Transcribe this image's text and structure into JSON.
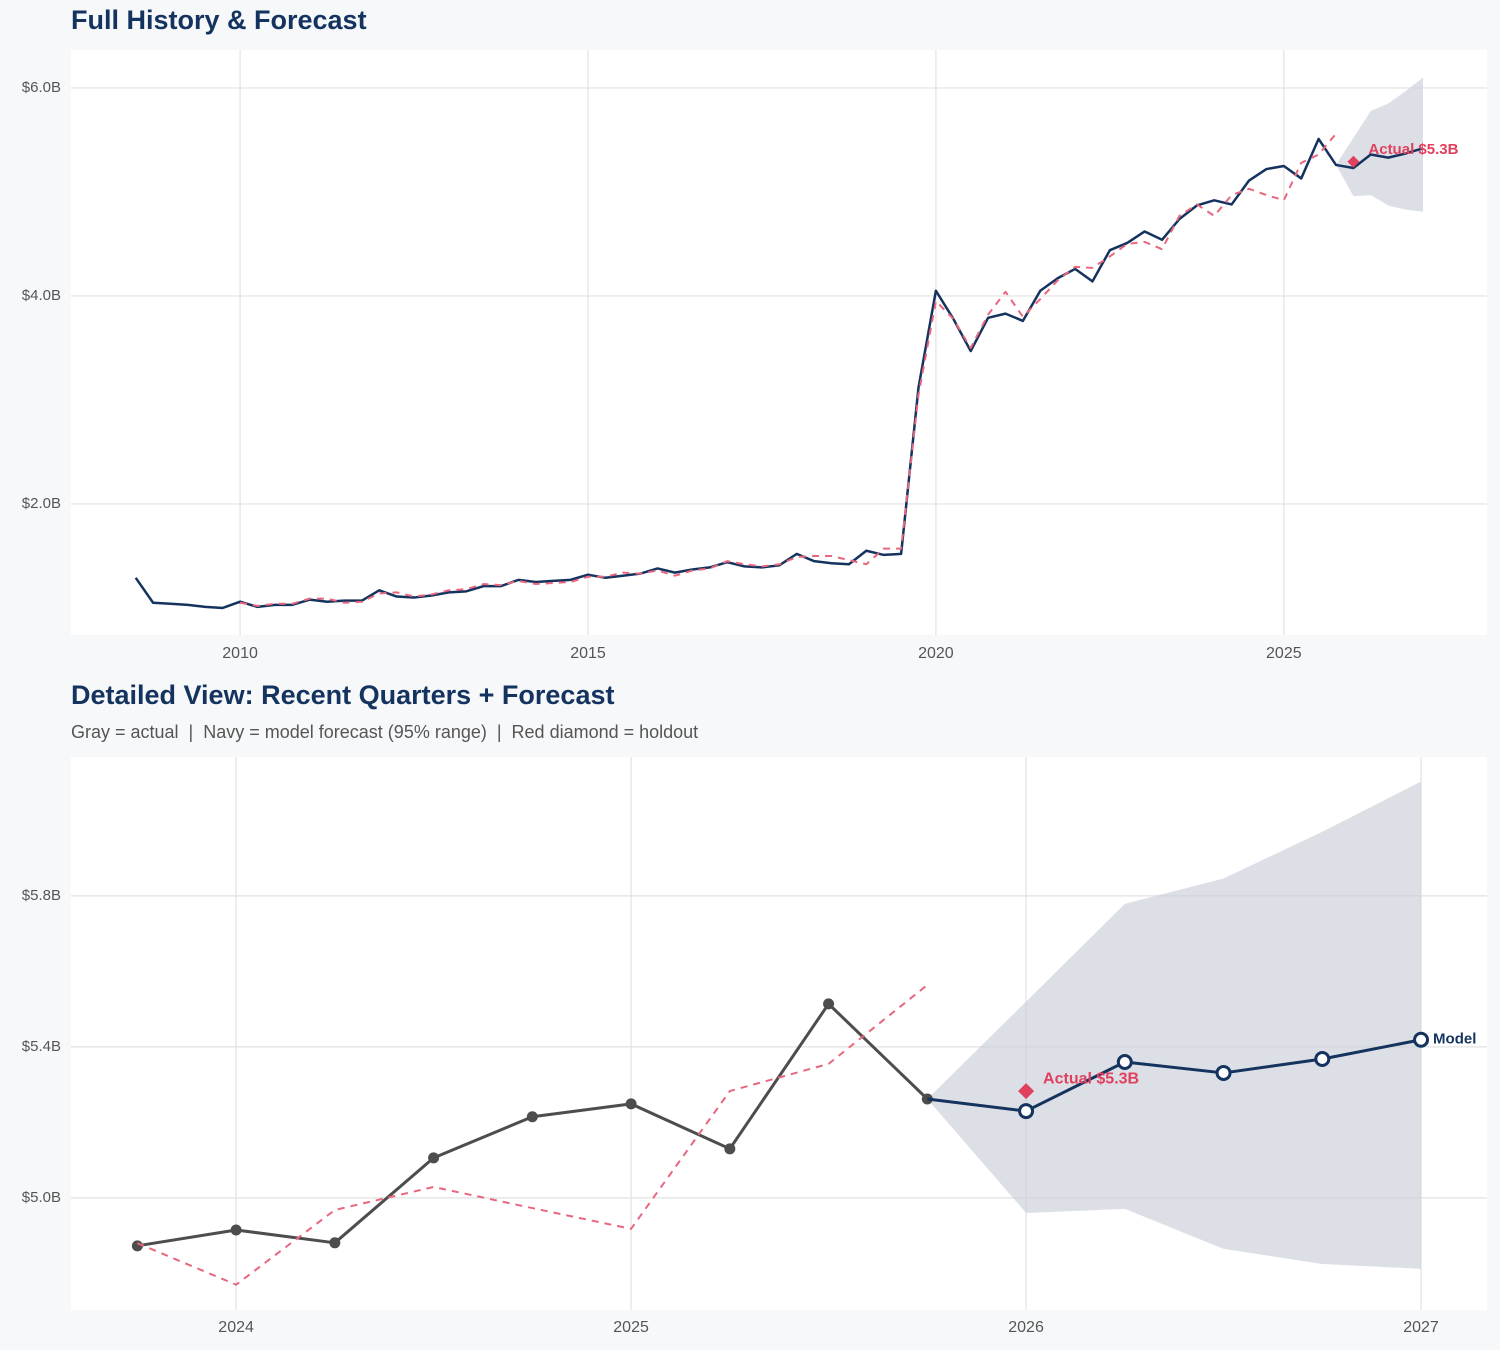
{
  "chart_data": [
    {
      "type": "line",
      "title": "Full History & Forecast",
      "xlim": [
        2007.57,
        2027.92
      ],
      "xticks": [
        2010,
        2015,
        2020,
        2025
      ],
      "ylim": [
        0.74,
        6.365
      ],
      "yticks": [
        {
          "value": 2,
          "label": "$2.0B"
        },
        {
          "value": 4,
          "label": "$4.0B"
        },
        {
          "value": 6,
          "label": "$6.0B"
        }
      ],
      "grid": true,
      "band": {
        "color": "#c9cfd9",
        "x": [
          2025.75,
          2026,
          2026.25,
          2026.5,
          2026.75,
          2027
        ],
        "lower": [
          5.26,
          4.96,
          4.97,
          4.87,
          4.83,
          4.81
        ],
        "upper": [
          5.26,
          5.52,
          5.78,
          5.85,
          5.97,
          6.1
        ]
      },
      "series": [
        {
          "color": "#14335e",
          "style": "solid",
          "x": [
            2008.5,
            2008.75,
            2009,
            2009.25,
            2009.5,
            2009.75,
            2010,
            2010.25,
            2010.5,
            2010.75,
            2011,
            2011.25,
            2011.5,
            2011.75,
            2012,
            2012.25,
            2012.5,
            2012.75,
            2013,
            2013.25,
            2013.5,
            2013.75,
            2014,
            2014.25,
            2014.5,
            2014.75,
            2015,
            2015.25,
            2015.5,
            2015.75,
            2016,
            2016.25,
            2016.5,
            2016.75,
            2017,
            2017.25,
            2017.5,
            2017.75,
            2018,
            2018.25,
            2018.5,
            2018.75,
            2019,
            2019.25,
            2019.5,
            2019.75,
            2020,
            2020.25,
            2020.5,
            2020.75,
            2021,
            2021.25,
            2021.5,
            2021.75,
            2022,
            2022.25,
            2022.5,
            2022.75,
            2023,
            2023.25,
            2023.5,
            2023.75,
            2024,
            2024.25,
            2024.5,
            2024.75,
            2025,
            2025.25,
            2025.5,
            2025.75,
            2026,
            2026.25,
            2026.5,
            2026.75,
            2027
          ],
          "values": [
            1.29,
            1.05,
            1.04,
            1.03,
            1.01,
            1.0,
            1.06,
            1.01,
            1.03,
            1.03,
            1.08,
            1.06,
            1.07,
            1.07,
            1.17,
            1.11,
            1.1,
            1.12,
            1.15,
            1.16,
            1.21,
            1.21,
            1.27,
            1.25,
            1.26,
            1.27,
            1.32,
            1.29,
            1.31,
            1.33,
            1.38,
            1.34,
            1.37,
            1.39,
            1.44,
            1.4,
            1.39,
            1.41,
            1.52,
            1.45,
            1.43,
            1.42,
            1.55,
            1.51,
            1.52,
            3.12,
            4.05,
            3.78,
            3.47,
            3.79,
            3.83,
            3.76,
            4.05,
            4.17,
            4.26,
            4.14,
            4.44,
            4.51,
            4.62,
            4.54,
            4.74,
            4.87,
            4.92,
            4.88,
            5.11,
            5.22,
            5.25,
            5.13,
            5.51,
            5.26,
            5.23,
            5.36,
            5.33,
            5.37,
            5.42
          ]
        },
        {
          "color": "#e8677f",
          "style": "dashed",
          "x": [
            2010,
            2010.25,
            2010.5,
            2010.75,
            2011,
            2011.25,
            2011.5,
            2011.75,
            2012,
            2012.25,
            2012.5,
            2012.75,
            2013,
            2013.25,
            2013.5,
            2013.75,
            2014,
            2014.25,
            2014.5,
            2014.75,
            2015,
            2015.25,
            2015.5,
            2015.75,
            2016,
            2016.25,
            2016.5,
            2016.75,
            2017,
            2017.25,
            2017.5,
            2017.75,
            2018,
            2018.25,
            2018.5,
            2018.75,
            2019,
            2019.25,
            2019.5,
            2019.75,
            2020,
            2020.25,
            2020.5,
            2020.75,
            2021,
            2021.25,
            2021.5,
            2021.75,
            2022,
            2022.25,
            2022.5,
            2022.75,
            2023,
            2023.25,
            2023.5,
            2023.75,
            2024,
            2024.25,
            2024.5,
            2024.75,
            2025,
            2025.25,
            2025.5,
            2025.75
          ],
          "values": [
            1.05,
            1.02,
            1.04,
            1.04,
            1.09,
            1.09,
            1.05,
            1.06,
            1.14,
            1.15,
            1.11,
            1.13,
            1.17,
            1.18,
            1.23,
            1.22,
            1.26,
            1.23,
            1.24,
            1.25,
            1.3,
            1.3,
            1.34,
            1.33,
            1.36,
            1.31,
            1.36,
            1.38,
            1.45,
            1.42,
            1.4,
            1.42,
            1.49,
            1.5,
            1.5,
            1.46,
            1.42,
            1.57,
            1.57,
            3.05,
            3.95,
            3.78,
            3.5,
            3.82,
            4.04,
            3.8,
            3.97,
            4.15,
            4.28,
            4.27,
            4.38,
            4.5,
            4.52,
            4.45,
            4.77,
            4.88,
            4.77,
            4.97,
            5.03,
            4.97,
            4.92,
            5.28,
            5.36,
            5.56
          ]
        }
      ],
      "holdout": {
        "x": 2026,
        "value": 5.29,
        "label": "Actual $5.3B",
        "color": "#e0405e"
      }
    },
    {
      "type": "line",
      "title": "Detailed View: Recent Quarters + Forecast",
      "subtitle": "Gray = actual  |  Navy = model forecast (95% range)  |  Red diamond = holdout",
      "xlim": [
        2023.582,
        2027.167
      ],
      "xticks": [
        2024,
        2025,
        2026,
        2027
      ],
      "ylim": [
        4.703,
        6.168
      ],
      "yticks": [
        {
          "value": 5.0,
          "label": "$5.0B"
        },
        {
          "value": 5.4,
          "label": "$5.4B"
        },
        {
          "value": 5.8,
          "label": "$5.8B"
        }
      ],
      "grid": true,
      "band": {
        "color": "#c9cfd9",
        "x": [
          2025.75,
          2026,
          2026.25,
          2026.5,
          2026.75,
          2027
        ],
        "lower": [
          5.262,
          4.96,
          4.971,
          4.865,
          4.825,
          4.812
        ],
        "upper": [
          5.262,
          5.52,
          5.779,
          5.846,
          5.97,
          6.103
        ]
      },
      "series": [
        {
          "color": "#4d4d4d",
          "style": "solid",
          "marker": "filled",
          "x": [
            2023.75,
            2024,
            2024.25,
            2024.5,
            2024.75,
            2025,
            2025.25,
            2025.5,
            2025.75
          ],
          "values": [
            4.873,
            4.915,
            4.881,
            5.106,
            5.215,
            5.249,
            5.13,
            5.514,
            5.262
          ]
        },
        {
          "color": "#e8677f",
          "style": "dashed",
          "x": [
            2023.75,
            2024,
            2024.25,
            2024.5,
            2024.75,
            2025,
            2025.25,
            2025.5,
            2025.75
          ],
          "values": [
            4.88,
            4.77,
            4.968,
            5.029,
            4.973,
            4.918,
            5.283,
            5.355,
            5.564
          ]
        },
        {
          "name": "Model",
          "color": "#14335e",
          "style": "solid",
          "marker": "hollow",
          "x": [
            2025.75,
            2026,
            2026.25,
            2026.5,
            2026.75,
            2027
          ],
          "values": [
            5.262,
            5.23,
            5.36,
            5.331,
            5.368,
            5.419
          ]
        }
      ],
      "holdout": {
        "x": 2026,
        "value": 5.283,
        "label": "Actual $5.3B",
        "color": "#e0405e"
      }
    }
  ]
}
